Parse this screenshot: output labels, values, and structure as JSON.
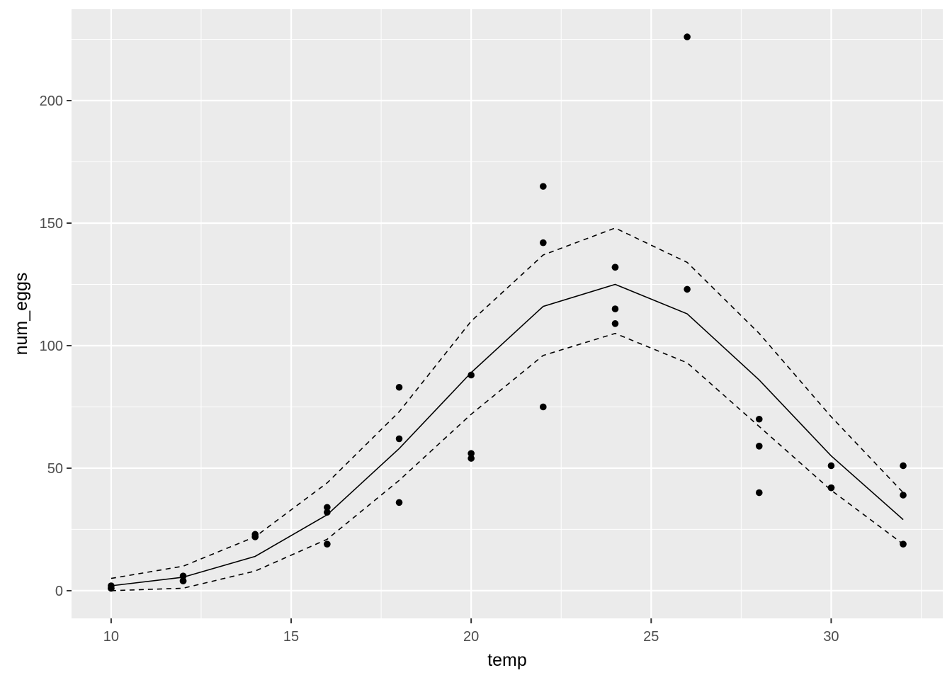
{
  "chart_data": {
    "type": "scatter",
    "title": "",
    "xlabel": "temp",
    "ylabel": "num_eggs",
    "xlim": [
      8.9,
      33.1
    ],
    "ylim": [
      -11.3,
      237.3
    ],
    "x_ticks": [
      10,
      15,
      20,
      25,
      30
    ],
    "y_ticks": [
      0,
      50,
      100,
      150,
      200
    ],
    "grid": true,
    "legend": "none",
    "colors": {
      "panel": "#ebebeb",
      "grid": "#ffffff",
      "ink": "#000000",
      "tick_text": "#4d4d4d"
    },
    "points": {
      "x": [
        10,
        10,
        10,
        12,
        12,
        12,
        14,
        14,
        14,
        16,
        16,
        16,
        18,
        18,
        18,
        20,
        20,
        20,
        22,
        22,
        22,
        24,
        24,
        24,
        24,
        26,
        26,
        28,
        28,
        28,
        30,
        30,
        30,
        32,
        32,
        32
      ],
      "y": [
        1,
        2,
        1,
        4,
        6,
        4,
        22,
        23,
        22,
        19,
        32,
        34,
        36,
        62,
        83,
        56,
        54,
        88,
        165,
        142,
        75,
        132,
        115,
        109,
        132,
        226,
        123,
        70,
        59,
        40,
        51,
        42,
        42,
        51,
        39,
        19
      ]
    },
    "series": [
      {
        "style": "solid",
        "x": [
          10,
          12,
          14,
          16,
          18,
          20,
          22,
          24,
          26,
          28,
          30,
          32
        ],
        "y": [
          2,
          5.5,
          14,
          31,
          58,
          89,
          116,
          125,
          113,
          86,
          55,
          29
        ]
      },
      {
        "style": "dashed",
        "x": [
          10,
          12,
          14,
          16,
          18,
          20,
          22,
          24,
          26,
          28,
          30,
          32
        ],
        "y": [
          5,
          10,
          22,
          44,
          73,
          110,
          137,
          148,
          134,
          105,
          71,
          40
        ]
      },
      {
        "style": "dashed",
        "x": [
          10,
          12,
          14,
          16,
          18,
          20,
          22,
          24,
          26,
          28,
          30,
          32
        ],
        "y": [
          0,
          1,
          8,
          21,
          45,
          72,
          96,
          105,
          93,
          67,
          41,
          19
        ]
      }
    ]
  }
}
